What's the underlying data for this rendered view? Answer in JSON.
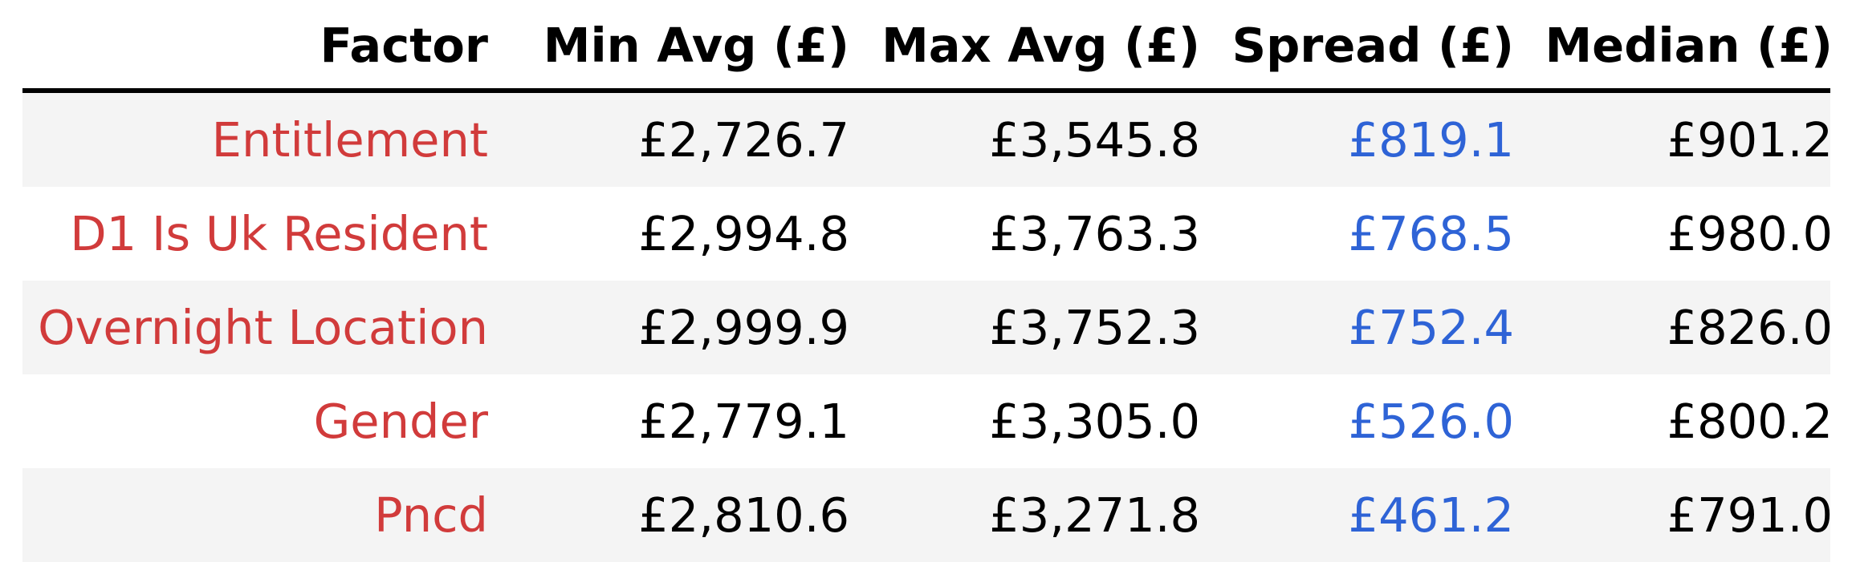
{
  "chart_data": {
    "type": "table",
    "columns": [
      "Factor",
      "Min Avg (£)",
      "Max Avg (£)",
      "Spread (£)",
      "Median (£)"
    ],
    "rows": [
      [
        "Entitlement",
        "£2,726.7",
        "£3,545.8",
        "£819.1",
        "£901.2"
      ],
      [
        "D1 Is Uk Resident",
        "£2,994.8",
        "£3,763.3",
        "£768.5",
        "£980.0"
      ],
      [
        "Overnight Location",
        "£2,999.9",
        "£3,752.3",
        "£752.4",
        "£826.0"
      ],
      [
        "Gender",
        "£2,779.1",
        "£3,305.0",
        "£526.0",
        "£800.2"
      ],
      [
        "Pncd",
        "£2,810.6",
        "£3,271.8",
        "£461.2",
        "£791.0"
      ]
    ],
    "colors": {
      "factor": "#d13b3b",
      "spread": "#2e63d6",
      "default": "#000000",
      "row_shade": "#f4f4f4"
    }
  }
}
